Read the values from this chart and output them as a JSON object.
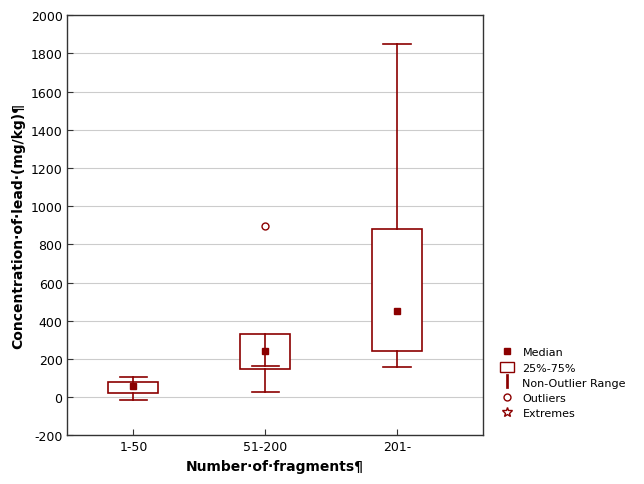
{
  "categories": [
    "1-50",
    "51-200",
    "201-"
  ],
  "box_color": "#8B0000",
  "background_color": "#ffffff",
  "xlabel": "Number·of·fragments¶",
  "ylabel": "Concentration·of·lead·(mg/kg)¶",
  "ylim": [
    -200,
    2000
  ],
  "yticks": [
    -200,
    0,
    200,
    400,
    600,
    800,
    1000,
    1200,
    1400,
    1600,
    1800,
    2000
  ],
  "boxes": [
    {
      "q1": 20,
      "median": 60,
      "q3": 80,
      "whisker_low": -15,
      "whisker_high": 105,
      "outliers": [],
      "extremes": []
    },
    {
      "q1": 150,
      "median": 240,
      "q3": 330,
      "whisker_low": 30,
      "whisker_high": 165,
      "outliers": [
        895
      ],
      "extremes": []
    },
    {
      "q1": 240,
      "median": 450,
      "q3": 880,
      "whisker_low": 160,
      "whisker_high": 1850,
      "outliers": [],
      "extremes": []
    }
  ],
  "legend_entries": [
    "Median",
    "25%-75%",
    "Non-Outlier Range",
    "Outliers",
    "Extremes"
  ],
  "box_width": 0.38,
  "grid_color": "#cccccc",
  "label_fontsize": 10,
  "tick_fontsize": 9,
  "legend_fontsize": 8
}
